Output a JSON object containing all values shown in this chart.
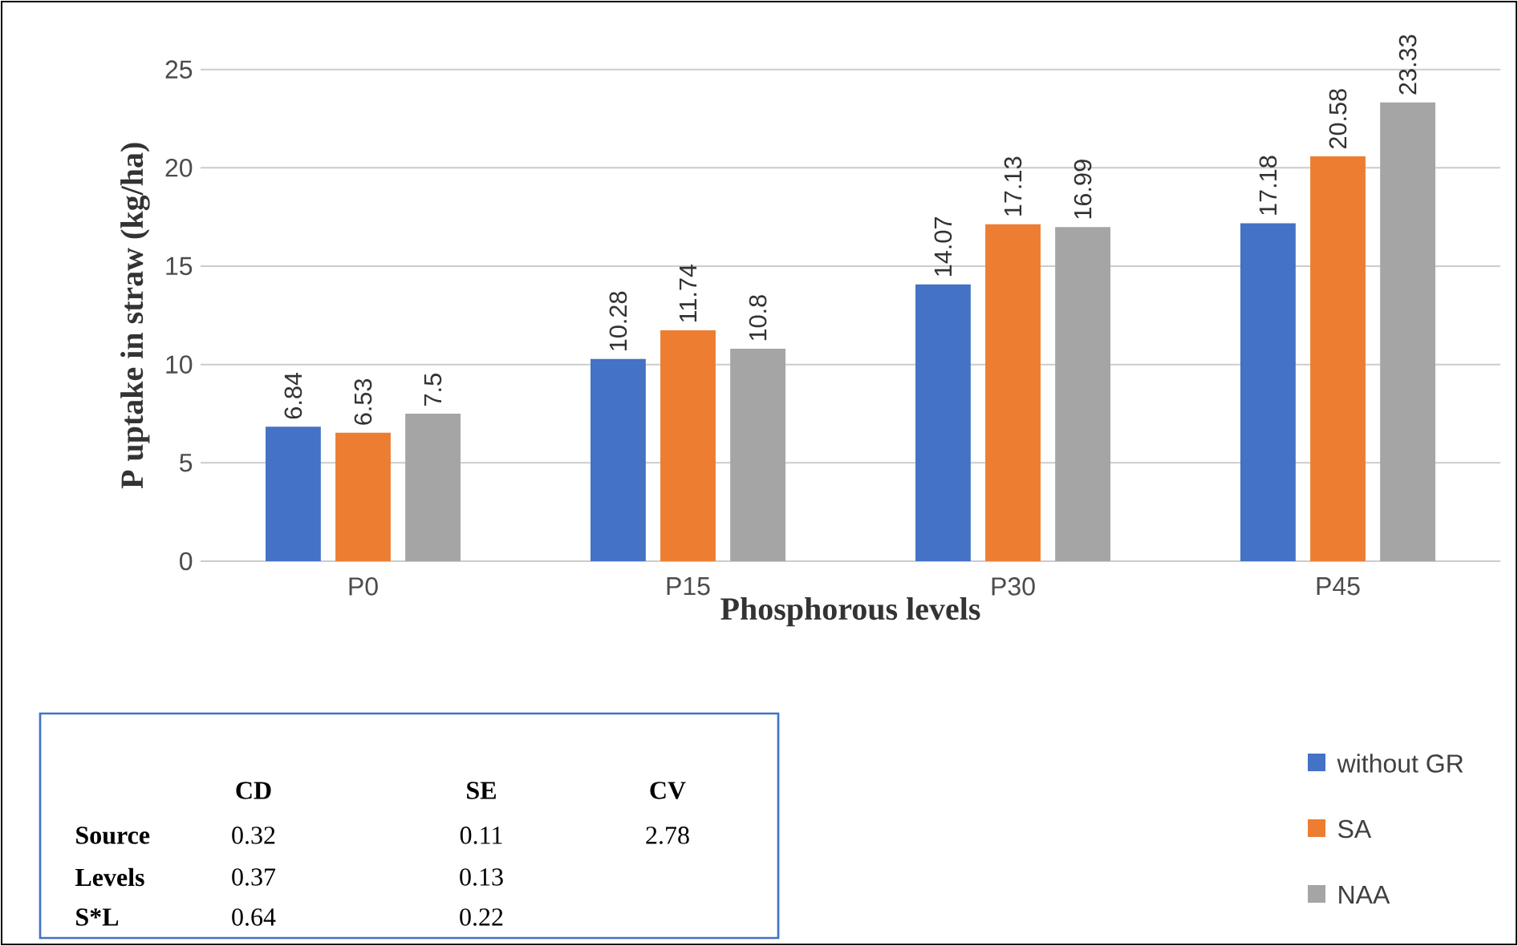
{
  "chart_data": {
    "type": "bar",
    "ylabel": "P uptake in straw (kg/ha)",
    "xlabel": "Phosphorous levels",
    "categories": [
      "P0",
      "P15",
      "P30",
      "P45"
    ],
    "series": [
      {
        "name": "without GR",
        "color": "#4472c4",
        "values": [
          6.84,
          10.28,
          14.07,
          17.18
        ]
      },
      {
        "name": "SA",
        "color": "#ed7d31",
        "values": [
          6.53,
          11.74,
          17.13,
          20.58
        ]
      },
      {
        "name": "NAA",
        "color": "#a5a5a5",
        "values": [
          7.5,
          10.8,
          16.99,
          23.33
        ]
      }
    ],
    "ylim": [
      0,
      25
    ],
    "yticks": [
      0,
      5,
      10,
      15,
      20,
      25
    ],
    "grid": "y",
    "legend": "bottom right",
    "data_labels": true,
    "annotations": [
      "CD",
      "SE",
      "CV",
      "Source",
      "0.32",
      "0.11",
      "2.78",
      "Levels",
      "0.37",
      "0.13",
      "S*L",
      "0.64",
      "0.22"
    ]
  }
}
